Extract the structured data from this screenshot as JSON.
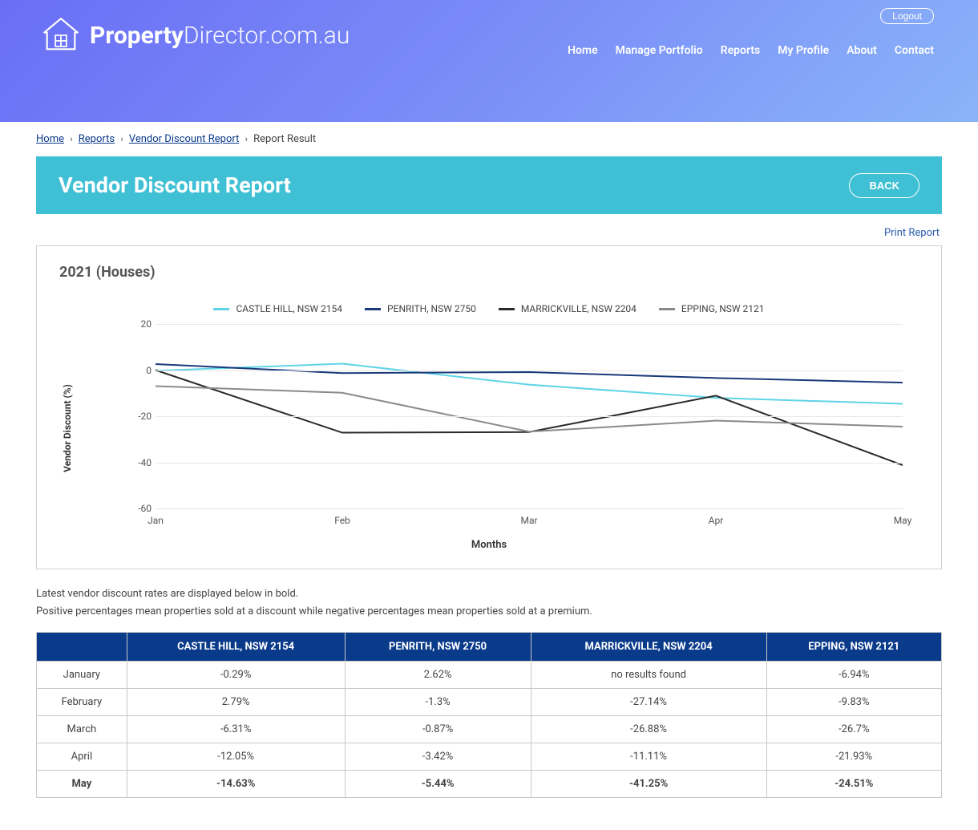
{
  "header": {
    "logout_label": "Logout",
    "logo_bold": "Property",
    "logo_light": "Director.com.au",
    "nav": [
      "Home",
      "Manage Portfolio",
      "Reports",
      "My Profile",
      "About",
      "Contact"
    ]
  },
  "breadcrumb": {
    "items": [
      "Home",
      "Reports",
      "Vendor Discount Report",
      "Report Result"
    ],
    "last_is_link": false
  },
  "titlebar": {
    "title": "Vendor Discount Report",
    "back_label": "BACK"
  },
  "print_label": "Print Report",
  "chart": {
    "title": "2021 (Houses)",
    "type": "line",
    "y_label": "Vendor Discount (%)",
    "x_label": "Months",
    "x_categories": [
      "Jan",
      "Feb",
      "Mar",
      "Apr",
      "May"
    ],
    "ylim": [
      -60,
      20
    ],
    "ytick_step": 20,
    "grid_color": "#e8e8e8",
    "background_color": "#ffffff",
    "line_width": 2,
    "series": [
      {
        "name": "CASTLE HILL, NSW 2154",
        "color": "#5fd4e6",
        "values": [
          -0.29,
          2.79,
          -6.31,
          -12.05,
          -14.63
        ]
      },
      {
        "name": "PENRITH, NSW 2750",
        "color": "#1a3a7a",
        "values": [
          2.62,
          -1.3,
          -0.87,
          -3.42,
          -5.44
        ]
      },
      {
        "name": "MARRICKVILLE, NSW 2204",
        "color": "#2a2a2a",
        "values": [
          0,
          -27.14,
          -26.88,
          -11.11,
          -41.25
        ]
      },
      {
        "name": "EPPING, NSW 2121",
        "color": "#8a8a8a",
        "values": [
          -6.94,
          -9.83,
          -26.7,
          -21.93,
          -24.51
        ]
      }
    ],
    "tick_fontsize": 12,
    "label_fontsize": 12
  },
  "notes": {
    "line1": "Latest vendor discount rates are displayed below in bold.",
    "line2": "Positive percentages mean properties sold at a discount while negative percentages mean properties sold at a premium."
  },
  "table": {
    "header_bg": "#0a3a8a",
    "header_fg": "#ffffff",
    "border_color": "#c8c8c8",
    "columns": [
      "",
      "CASTLE HILL, NSW 2154",
      "PENRITH, NSW 2750",
      "MARRICKVILLE, NSW 2204",
      "EPPING, NSW 2121"
    ],
    "rows": [
      {
        "label": "January",
        "cells": [
          "-0.29%",
          "2.62%",
          "no results found",
          "-6.94%"
        ],
        "bold": false
      },
      {
        "label": "February",
        "cells": [
          "2.79%",
          "-1.3%",
          "-27.14%",
          "-9.83%"
        ],
        "bold": false
      },
      {
        "label": "March",
        "cells": [
          "-6.31%",
          "-0.87%",
          "-26.88%",
          "-26.7%"
        ],
        "bold": false
      },
      {
        "label": "April",
        "cells": [
          "-12.05%",
          "-3.42%",
          "-11.11%",
          "-21.93%"
        ],
        "bold": false
      },
      {
        "label": "May",
        "cells": [
          "-14.63%",
          "-5.44%",
          "-41.25%",
          "-24.51%"
        ],
        "bold": true
      }
    ]
  }
}
